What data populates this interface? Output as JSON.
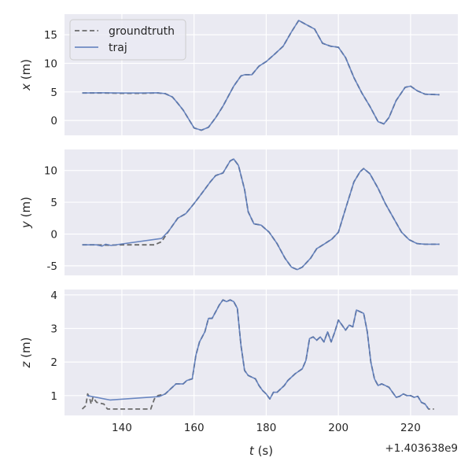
{
  "chart_data": {
    "type": "line",
    "xlabel_var": "t",
    "xlabel_unit": " (s)",
    "x_offset_label": "+1.403638e9",
    "xlim": [
      124.1,
      233.1
    ],
    "xticks": [
      140,
      160,
      180,
      200,
      220
    ],
    "grid": true,
    "legend": {
      "placement": "upper-left",
      "entries": [
        "groundtruth",
        "traj"
      ]
    },
    "colors": {
      "background": "#eaeaf2",
      "grid": "#ffffff",
      "groundtruth": "#6b6b6b",
      "traj": "#5b7bbb"
    },
    "panels": [
      {
        "ylabel_var": "x",
        "ylabel_unit": " (m)",
        "ylim": [
          -2.6,
          18.6
        ],
        "yticks": [
          0,
          5,
          10,
          15
        ],
        "series": [
          {
            "name": "groundtruth",
            "style": "dashed",
            "t": [
              129,
              135,
              140,
              145,
              150,
              152,
              154,
              155.5,
              157,
              160,
              162,
              164,
              166,
              168,
              171,
              173,
              174,
              176,
              178,
              180,
              182.5,
              184.7,
              187,
              189,
              191,
              193.4,
              195.6,
              197.8,
              200,
              202,
              204.3,
              206.5,
              208.7,
              211,
              212.6,
              214,
              216,
              218.5,
              220,
              221.8,
              224,
              228
            ],
            "v": [
              4.8,
              4.8,
              4.75,
              4.75,
              4.8,
              4.7,
              4.1,
              3,
              1.8,
              -1.3,
              -1.7,
              -1.2,
              0.5,
              2.5,
              6,
              7.8,
              8,
              8,
              9.5,
              10.3,
              11.7,
              13,
              15.5,
              17.5,
              16.8,
              16,
              13.5,
              13,
              12.8,
              11,
              7.5,
              4.8,
              2.5,
              -0.2,
              -0.6,
              0.5,
              3.5,
              5.8,
              6,
              5.2,
              4.6,
              4.5
            ]
          },
          {
            "name": "traj",
            "style": "solid",
            "t": [
              129,
              135,
              140,
              145,
              150,
              152,
              154,
              155.5,
              157,
              160,
              162,
              164,
              166,
              168,
              171,
              173,
              174,
              176,
              178,
              180,
              182.5,
              184.7,
              187,
              189,
              191,
              193.4,
              195.6,
              197.8,
              200,
              202,
              204.3,
              206.5,
              208.7,
              211,
              212.6,
              214,
              216,
              218.5,
              220,
              221.8,
              224,
              228
            ],
            "v": [
              4.8,
              4.85,
              4.8,
              4.8,
              4.85,
              4.7,
              4.1,
              3,
              1.8,
              -1.3,
              -1.7,
              -1.2,
              0.5,
              2.5,
              6,
              7.8,
              8,
              8,
              9.5,
              10.3,
              11.7,
              13,
              15.5,
              17.5,
              16.8,
              16,
              13.5,
              13,
              12.8,
              11,
              7.5,
              4.8,
              2.5,
              -0.2,
              -0.6,
              0.5,
              3.5,
              5.8,
              6,
              5.2,
              4.6,
              4.5
            ]
          }
        ]
      },
      {
        "ylabel_var": "y",
        "ylabel_unit": " (m)",
        "ylim": [
          -6.5,
          13.3
        ],
        "yticks": [
          -5,
          0,
          5,
          10
        ],
        "series": [
          {
            "name": "groundtruth",
            "style": "dashed",
            "t": [
              129,
              133,
              136,
              140,
              145,
              149,
              151,
              153,
              155.5,
              157.7,
              160,
              162,
              164.5,
              166,
              168,
              170,
              171,
              172.3,
              174,
              175,
              176.6,
              178.6,
              180.8,
              183,
              185.2,
              187,
              188.6,
              190,
              192.3,
              194,
              196,
              198.2,
              200,
              202,
              204.3,
              206,
              207,
              208.7,
              211,
              213,
              215.3,
              217.5,
              219.6,
              221.8,
              224,
              228
            ],
            "v": [
              -1.7,
              -1.7,
              -1.75,
              -1.7,
              -1.7,
              -1.7,
              -1.2,
              0.5,
              2.5,
              3.2,
              4.8,
              6.3,
              8.2,
              9.2,
              9.6,
              11.5,
              11.8,
              10.8,
              7,
              3.5,
              1.6,
              1.4,
              0.3,
              -1.5,
              -3.8,
              -5.2,
              -5.6,
              -5.2,
              -3.8,
              -2.3,
              -1.6,
              -0.8,
              0.3,
              4,
              8.2,
              9.8,
              10.3,
              9.5,
              7.2,
              4.8,
              2.5,
              0.3,
              -0.9,
              -1.5,
              -1.6,
              -1.6
            ]
          },
          {
            "name": "traj",
            "style": "solid",
            "t": [
              129,
              133,
              134.5,
              135.5,
              137,
              151,
              153,
              155.5,
              157.7,
              160,
              162,
              164.5,
              166,
              168,
              170,
              171,
              172.3,
              174,
              175,
              176.6,
              178.6,
              180.8,
              183,
              185.2,
              187,
              188.6,
              190,
              192.3,
              194,
              196,
              198.2,
              200,
              202,
              204.3,
              206,
              207,
              208.7,
              211,
              213,
              215.3,
              217.5,
              219.6,
              221.8,
              224,
              228
            ],
            "v": [
              -1.7,
              -1.7,
              -1.9,
              -1.6,
              -1.8,
              -0.7,
              0.5,
              2.5,
              3.2,
              4.8,
              6.3,
              8.2,
              9.2,
              9.6,
              11.5,
              11.8,
              10.8,
              7,
              3.5,
              1.6,
              1.4,
              0.3,
              -1.5,
              -3.8,
              -5.2,
              -5.6,
              -5.2,
              -3.8,
              -2.3,
              -1.6,
              -0.8,
              0.3,
              4,
              8.2,
              9.8,
              10.3,
              9.5,
              7.2,
              4.8,
              2.5,
              0.3,
              -0.9,
              -1.5,
              -1.6,
              -1.6
            ]
          }
        ]
      },
      {
        "ylabel_var": "z",
        "ylabel_unit": " (m)",
        "ylim": [
          0.41,
          4.16
        ],
        "yticks": [
          1,
          2,
          3,
          4
        ],
        "series": [
          {
            "name": "groundtruth",
            "style": "dashed",
            "t": [
              129,
              130,
              130.5,
              131,
              131.5,
              132,
              133,
              135,
              136,
              140,
              145,
              148,
              149,
              150,
              152,
              153,
              155,
              157,
              158,
              159.5,
              160.5,
              161.5,
              163,
              164,
              165,
              166,
              167,
              168,
              169,
              170,
              171,
              172,
              173,
              174,
              175,
              176,
              177,
              178,
              179,
              180,
              181,
              182,
              183,
              185,
              186,
              188,
              190,
              191,
              192,
              193,
              194,
              195,
              196,
              197,
              198,
              199,
              200,
              201,
              202,
              203,
              204,
              205,
              206,
              207,
              208,
              209,
              210,
              211,
              212,
              213,
              214,
              215,
              216,
              217,
              218,
              219,
              220,
              221,
              222,
              223,
              224,
              225,
              226.5
            ],
            "v": [
              0.6,
              0.7,
              1.05,
              0.95,
              0.75,
              0.95,
              0.8,
              0.75,
              0.6,
              0.6,
              0.6,
              0.6,
              0.9,
              1.0,
              1.05,
              1.15,
              1.35,
              1.35,
              1.45,
              1.5,
              2.2,
              2.6,
              2.9,
              3.3,
              3.3,
              3.5,
              3.7,
              3.85,
              3.8,
              3.85,
              3.8,
              3.6,
              2.5,
              1.75,
              1.6,
              1.55,
              1.5,
              1.3,
              1.15,
              1.05,
              0.9,
              1.1,
              1.1,
              1.3,
              1.45,
              1.65,
              1.8,
              2.05,
              2.7,
              2.75,
              2.65,
              2.75,
              2.6,
              2.9,
              2.6,
              2.9,
              3.25,
              3.1,
              2.95,
              3.1,
              3.05,
              3.55,
              3.5,
              3.45,
              2.9,
              2.0,
              1.5,
              1.3,
              1.35,
              1.3,
              1.25,
              1.1,
              0.95,
              0.98,
              1.05,
              1.0,
              1.0,
              0.95,
              0.98,
              0.8,
              0.75,
              0.6,
              0.6
            ]
          },
          {
            "name": "traj",
            "style": "solid",
            "t": [
              130.4,
              136.7,
              150.3,
              152,
              153,
              155,
              157,
              158,
              159.5,
              160.5,
              161.5,
              163,
              164,
              165,
              166,
              167,
              168,
              169,
              170,
              171,
              172,
              173,
              174,
              175,
              176,
              177,
              178,
              179,
              180,
              181,
              182,
              183,
              185,
              186,
              188,
              190,
              191,
              192,
              193,
              194,
              195,
              196,
              197,
              198,
              199,
              200,
              201,
              202,
              203,
              204,
              205,
              206,
              207,
              208,
              209,
              210,
              211,
              212,
              213,
              214,
              215,
              216,
              217,
              218,
              219,
              220,
              221,
              222,
              223,
              224,
              225
            ],
            "v": [
              1.0,
              0.87,
              0.97,
              1.05,
              1.15,
              1.35,
              1.35,
              1.45,
              1.5,
              2.2,
              2.6,
              2.9,
              3.3,
              3.3,
              3.5,
              3.7,
              3.85,
              3.8,
              3.85,
              3.8,
              3.6,
              2.5,
              1.75,
              1.6,
              1.55,
              1.5,
              1.3,
              1.15,
              1.05,
              0.9,
              1.1,
              1.1,
              1.3,
              1.45,
              1.65,
              1.8,
              2.05,
              2.7,
              2.75,
              2.65,
              2.75,
              2.6,
              2.9,
              2.6,
              2.9,
              3.25,
              3.1,
              2.95,
              3.1,
              3.05,
              3.55,
              3.5,
              3.45,
              2.9,
              2.0,
              1.5,
              1.3,
              1.35,
              1.3,
              1.25,
              1.1,
              0.95,
              0.98,
              1.05,
              1.0,
              1.0,
              0.95,
              0.98,
              0.8,
              0.75,
              0.6
            ]
          }
        ]
      }
    ]
  }
}
